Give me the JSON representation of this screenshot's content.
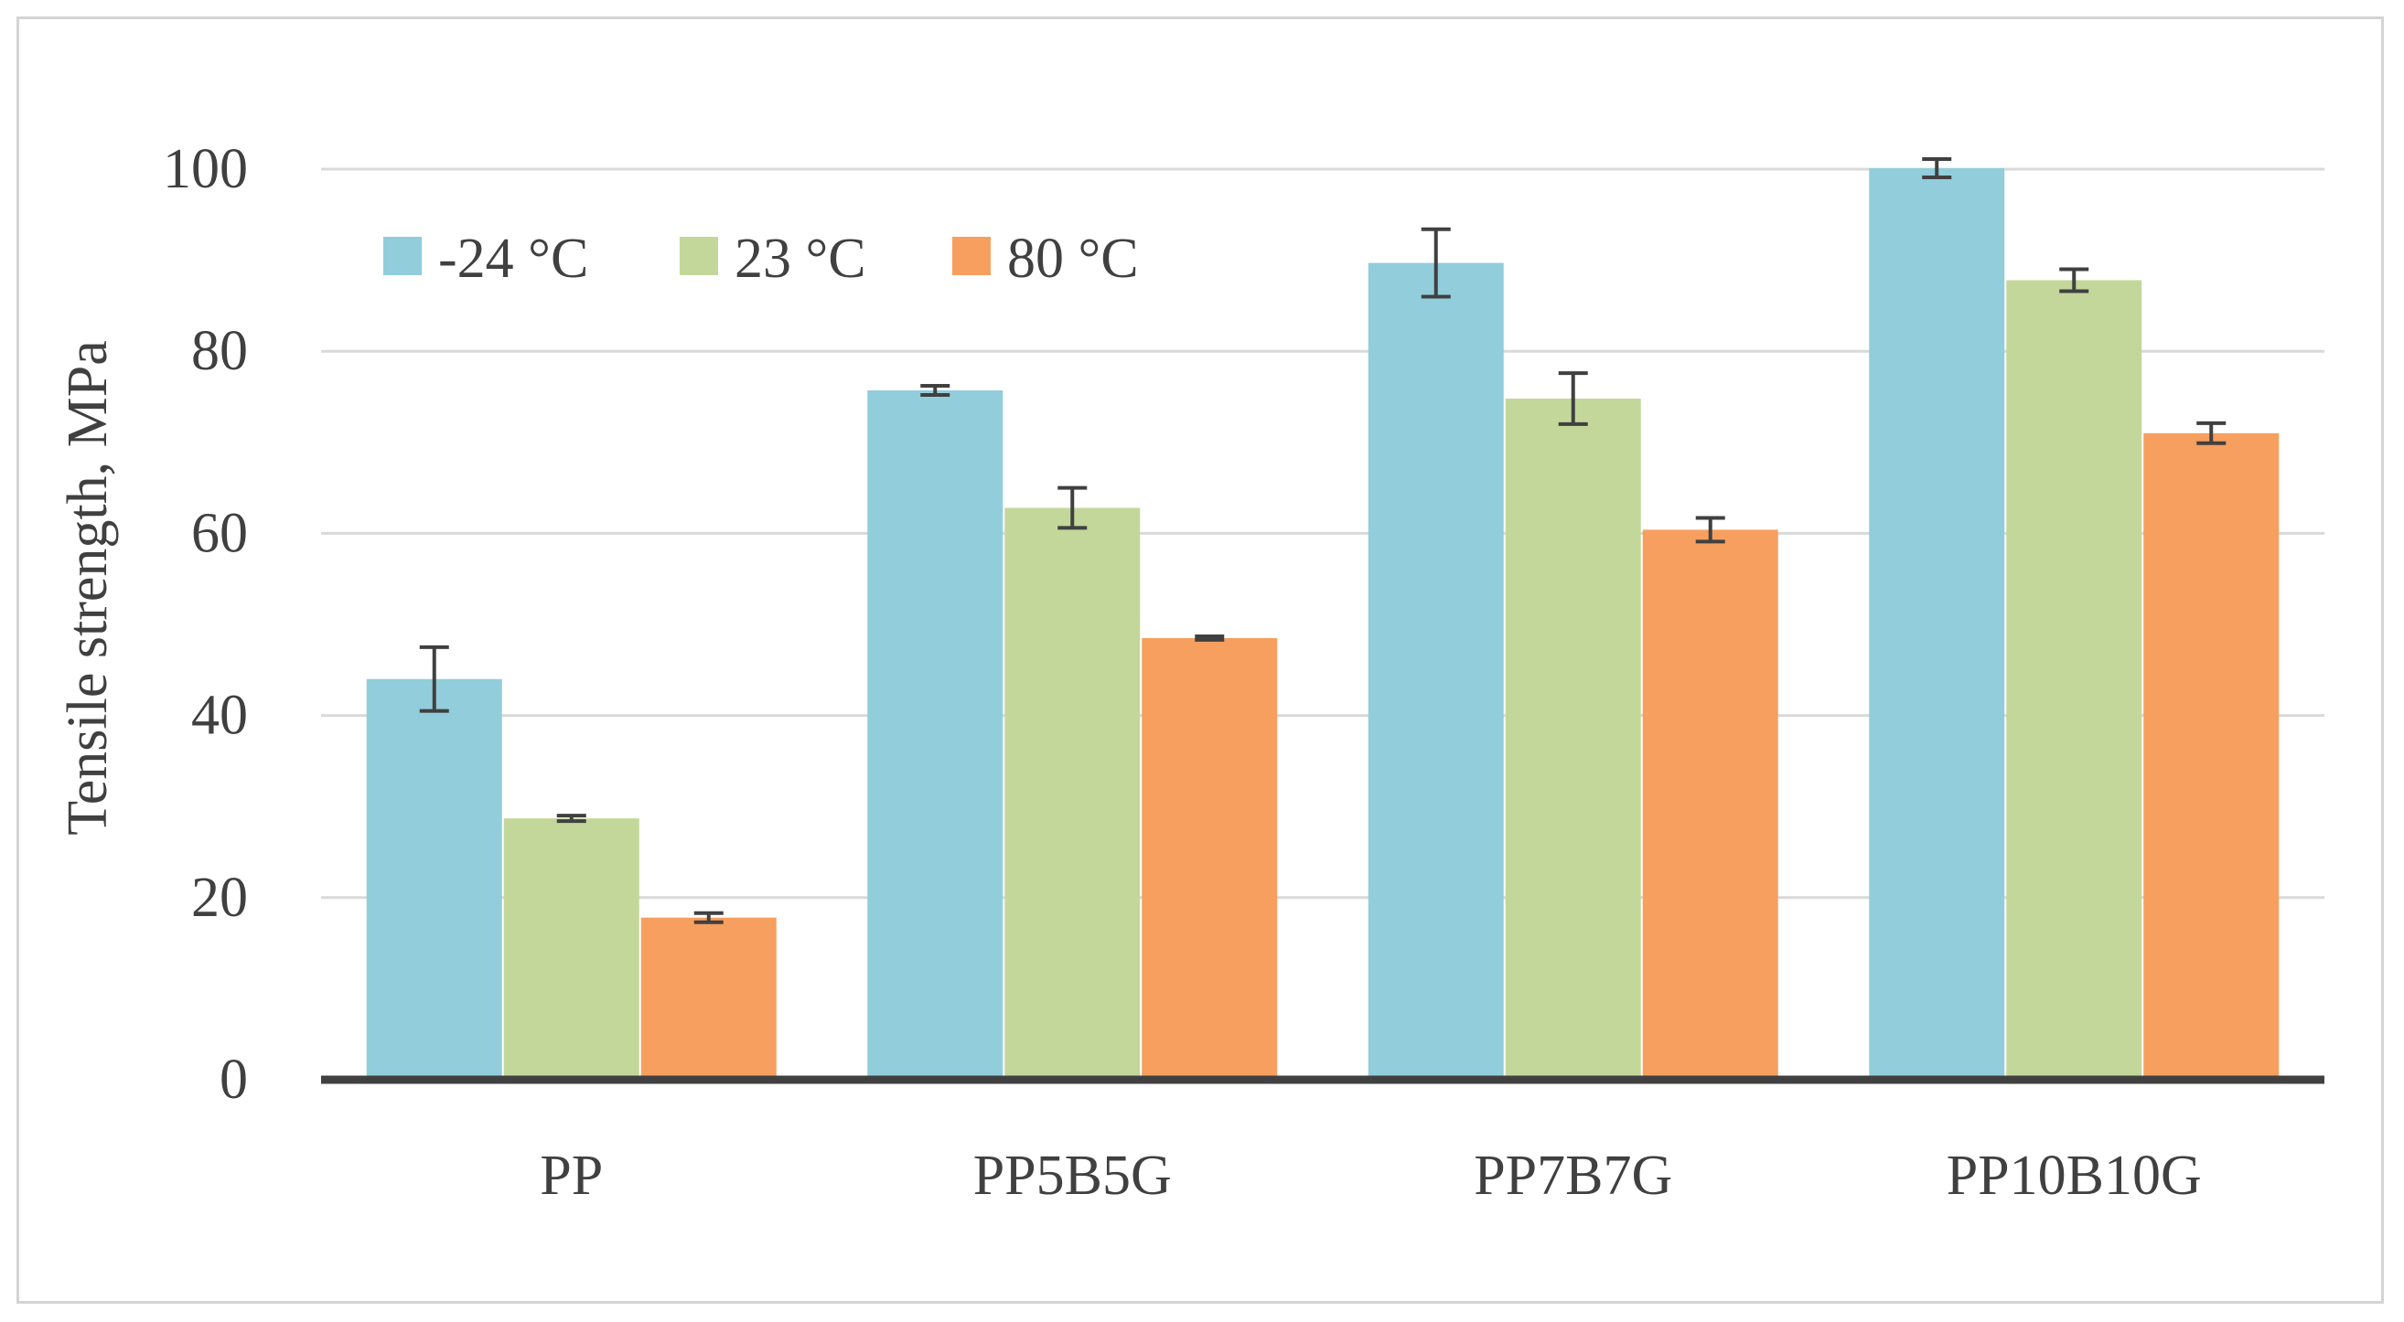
{
  "chart_data": {
    "type": "bar",
    "title": "",
    "xlabel": "",
    "ylabel": "Tensile strength, MPa",
    "ylim": [
      0,
      100
    ],
    "yticks": [
      0,
      20,
      40,
      60,
      80,
      100
    ],
    "grid": true,
    "legend_position": "top-left",
    "categories": [
      "PP",
      "PP5B5G",
      "PP7B7G",
      "PP10B10G"
    ],
    "series": [
      {
        "name": "-24 °C",
        "color": "#92CDDC",
        "values": [
          44,
          75.7,
          89.7,
          100.1
        ],
        "errors": [
          3.5,
          0.5,
          3.7,
          1.0
        ]
      },
      {
        "name": "23 °C",
        "color": "#C4D79B",
        "values": [
          28.7,
          62.8,
          74.8,
          87.8
        ],
        "errors": [
          0.3,
          2.2,
          2.8,
          1.2
        ]
      },
      {
        "name": "80 °C",
        "color": "#F79F5F",
        "values": [
          17.8,
          48.5,
          60.4,
          71.0
        ],
        "errors": [
          0.5,
          0.2,
          1.3,
          1.1
        ]
      }
    ]
  }
}
